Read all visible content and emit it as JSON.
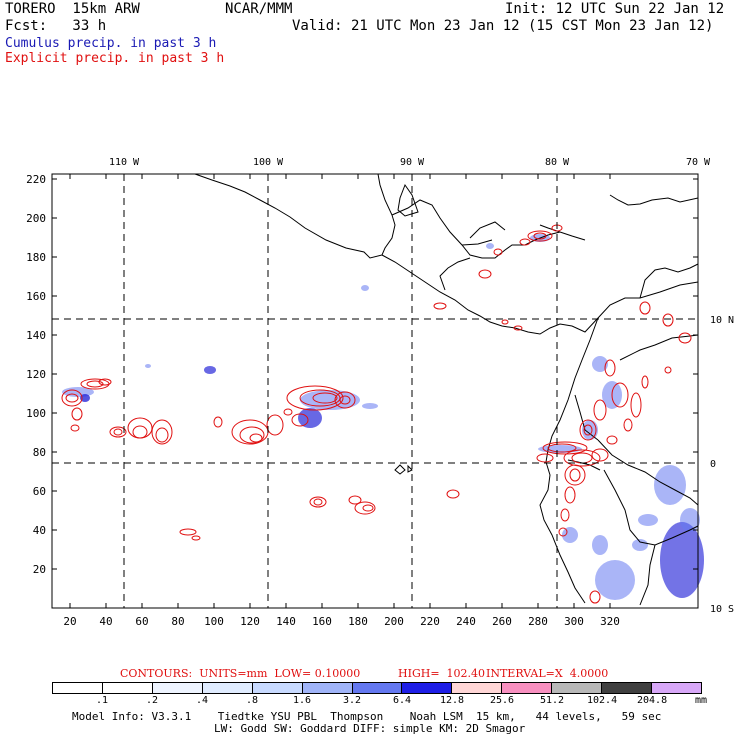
{
  "header": {
    "model": "TORERO  15km ARW",
    "org": "NCAR/MMM",
    "init": "Init: 12 UTC Sun 22 Jan 12",
    "fcst": "Fcst:   33 h",
    "valid": "Valid: 21 UTC Mon 23 Jan 12 (15 CST Mon 23 Jan 12)",
    "cumulus_label": "Cumulus precip. in past 3 h",
    "explicit_label": "Explicit precip. in past 3 h",
    "cumulus_color": "#1a1ab4",
    "explicit_color": "#e01010"
  },
  "map": {
    "lon_labels": [
      "110 W",
      "100 W",
      "90 W",
      "80 W",
      "70 W"
    ],
    "lat_labels": [
      "10 N",
      "0",
      "10 S"
    ],
    "x_ticks": [
      "20",
      "40",
      "60",
      "80",
      "100",
      "120",
      "140",
      "160",
      "180",
      "200",
      "220",
      "240",
      "260",
      "280",
      "300",
      "320"
    ],
    "y_ticks": [
      "20",
      "40",
      "60",
      "80",
      "100",
      "120",
      "140",
      "160",
      "180",
      "200",
      "220"
    ]
  },
  "contours_line": {
    "label": "CONTOURS:  UNITS=mm  LOW= 0.10000",
    "high": "HIGH=  102.40",
    "interval": "INTERVAL=X  4.0000"
  },
  "colorbar": {
    "labels": [
      ".1",
      ".2",
      ".4",
      ".8",
      "1.6",
      "3.2",
      "6.4",
      "12.8",
      "25.6",
      "51.2",
      "102.4",
      "204.8"
    ],
    "unit": "mm",
    "colors": [
      "#ffffff",
      "#ffffff",
      "#eef4ff",
      "#e0ecff",
      "#c8daff",
      "#a0b4f8",
      "#6478f0",
      "#1e1ee6",
      "#ffd6d6",
      "#f890c0",
      "#b8b8b8",
      "#404040",
      "#d8a8f8"
    ]
  },
  "footer": {
    "line1": "Model Info: V3.3.1    Tiedtke YSU PBL  Thompson    Noah LSM  15 km,   44 levels,   59 sec",
    "line2": "LW: Godd SW: Goddard DIFF: simple KM: 2D Smagor"
  }
}
